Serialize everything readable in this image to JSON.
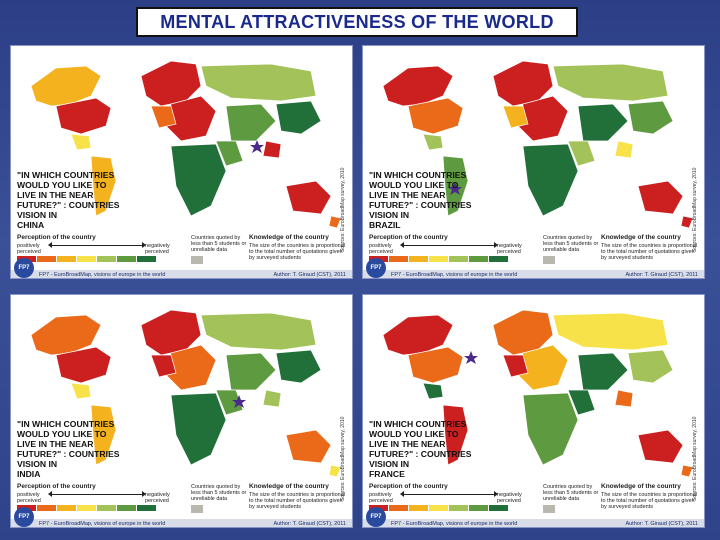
{
  "slide": {
    "title": "MENTAL ATTRACTIVENESS OF THE WORLD"
  },
  "legend": {
    "perception_title": "Perception of the country",
    "positive": "positively perceived",
    "negative": "negatively perceived",
    "few_students": "Countries quoted by less than 5 students or unreliable data",
    "knowledge_title": "Knowledge of the country",
    "knowledge_text": "The size of the countries is proportional to the total number of quotations given by surveyed students",
    "scale_colors": [
      "#cc1f1f",
      "#ea6a1a",
      "#f4b21e",
      "#f7e24a",
      "#a3c35a",
      "#5e9a3f",
      "#21703a"
    ],
    "unreliable_color": "#b8b8b0"
  },
  "footer": {
    "logo": "FP7",
    "project": "FP7 - EuroBroadMap, visions of europe in the world",
    "side_credit": "Sources: EuroBroadMap survey, 2010"
  },
  "panels": [
    {
      "question": "\"IN WHICH COUNTRIES WOULD YOU LIKE TO LIVE IN THE NEAR FUTURE?\" : COUNTRIES VISION IN",
      "country": "CHINA",
      "author": "Author: T. Giraud (CST), 2011"
    },
    {
      "question": "\"IN WHICH COUNTRIES WOULD YOU LIKE TO LIVE IN THE NEAR FUTURE?\" : COUNTRIES VISION IN",
      "country": "BRAZIL",
      "author": "Author: T. Giraud (CST), 2011"
    },
    {
      "question": "\"IN WHICH COUNTRIES WOULD YOU LIKE TO LIVE IN THE NEAR FUTURE?\" : COUNTRIES VISION IN",
      "country": "INDIA",
      "author": "Author: T. Giraud (CST), 2011"
    },
    {
      "question": "\"IN WHICH COUNTRIES WOULD YOU LIKE TO LIVE IN THE NEAR FUTURE?\" : COUNTRIES VISION IN",
      "country": "FRANCE",
      "author": "Author: T. Giraud (CST), 2011"
    }
  ]
}
